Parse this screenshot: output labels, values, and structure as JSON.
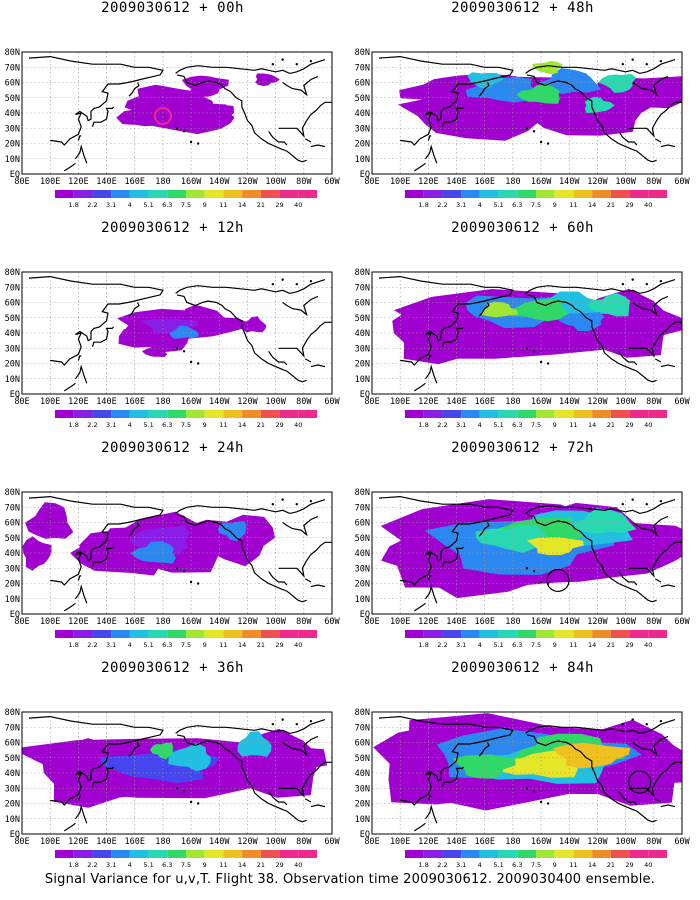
{
  "footer": "Signal Variance for u,v,T. Flight 38. Observation time 2009030612. 2009030400 ensemble.",
  "lon_labels": [
    "80E",
    "100E",
    "120E",
    "140E",
    "160E",
    "180",
    "160W",
    "140W",
    "120W",
    "100W",
    "80W",
    "60W"
  ],
  "lat_labels": [
    "80N",
    "70N",
    "60N",
    "50N",
    "40N",
    "30N",
    "20N",
    "10N",
    "EQ"
  ],
  "colorbar": {
    "labels": [
      "1.8",
      "2.2",
      "3.1",
      "4",
      "5.1",
      "6.3",
      "7.5",
      "9",
      "11",
      "14",
      "21",
      "29",
      "40"
    ],
    "colors": [
      "#a000d0",
      "#8a1ee6",
      "#4646f0",
      "#2a88f0",
      "#22c0e0",
      "#28d8b0",
      "#30d868",
      "#a0e632",
      "#e6e628",
      "#f0c020",
      "#f08c28",
      "#f05050",
      "#f0288c"
    ]
  },
  "panels": [
    {
      "id": "p00",
      "title": "2009030612 + 00h",
      "level": 0
    },
    {
      "id": "p48",
      "title": "2009030612 + 48h",
      "level": 4
    },
    {
      "id": "p12",
      "title": "2009030612 + 12h",
      "level": 1
    },
    {
      "id": "p60",
      "title": "2009030612 + 60h",
      "level": 5
    },
    {
      "id": "p24",
      "title": "2009030612 + 24h",
      "level": 2
    },
    {
      "id": "p72",
      "title": "2009030612 + 72h",
      "level": 6
    },
    {
      "id": "p36",
      "title": "2009030612 + 36h",
      "level": 3
    },
    {
      "id": "p84",
      "title": "2009030612 + 84h",
      "level": 7
    }
  ]
}
